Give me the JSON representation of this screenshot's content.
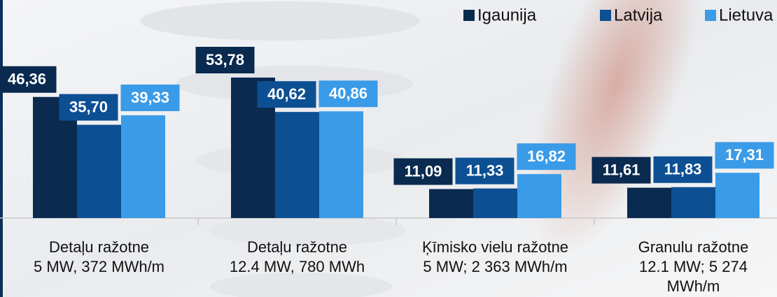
{
  "chart_data": {
    "type": "bar",
    "categories": [
      "Detaļu ražotne\n5 MW, 372 MWh/m",
      "Detaļu ražotne\n12.4 MW, 780 MWh",
      "Ķīmisko vielu ražotne\n5 MW; 2 363 MWh/m",
      "Granulu ražotne\n12.1 MW; 5 274\nMWh/m"
    ],
    "series": [
      {
        "name": "Igaunija",
        "color": "#0a2a4f",
        "values": [
          46.36,
          53.78,
          11.09,
          11.61
        ],
        "value_labels": [
          "46,36",
          "53,78",
          "11,09",
          "11,61"
        ]
      },
      {
        "name": "Latvija",
        "color": "#0d4f93",
        "values": [
          35.7,
          40.62,
          11.33,
          11.83
        ],
        "value_labels": [
          "35,70",
          "40,62",
          "11,33",
          "11,83"
        ]
      },
      {
        "name": "Lietuva",
        "color": "#3a9be8",
        "values": [
          39.33,
          40.86,
          16.82,
          17.31
        ],
        "value_labels": [
          "39,33",
          "40,86",
          "16,82",
          "17,31"
        ]
      }
    ],
    "legend": "top-right"
  }
}
